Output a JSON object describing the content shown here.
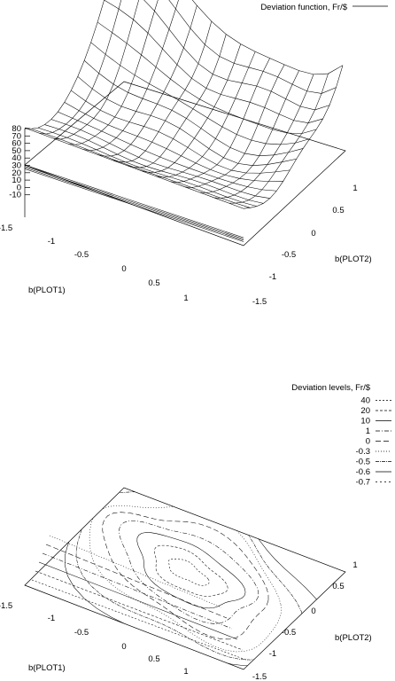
{
  "chart_data": [
    {
      "type": "surface",
      "legend": [
        "Deviation function, Fr/$"
      ],
      "xlabel": "b(PLOT1)",
      "ylabel": "b(PLOT2)",
      "x_ticks": [
        "-1.5",
        "-1",
        "-0.5",
        "0",
        "0.5",
        "1"
      ],
      "y_ticks": [
        "-1.5",
        "-1",
        "-0.5",
        "0",
        "0.5",
        "1"
      ],
      "z_ticks": [
        "80",
        "70",
        "60",
        "50",
        "40",
        "30",
        "20",
        "10",
        "0",
        "-10"
      ],
      "xlim": [
        -1.5,
        1.5
      ],
      "ylim": [
        -1.5,
        1.5
      ],
      "zlim": [
        -10,
        80
      ],
      "grid": "15x15 mesh",
      "legend_position": "top-right",
      "values_estimated": {
        "minimum_region": "centre, about -0.7 Fr/$",
        "high_corner": "b(PLOT1) = -1.5, b(PLOT2) = 1.5, about 80+ Fr/$",
        "low_edge": "b(PLOT2) = -1.5 row, about 30 Fr/$"
      }
    },
    {
      "type": "contour",
      "legend": [
        "Deviation levels, Fr/$",
        "40",
        "20",
        "10",
        "1",
        "0",
        "-0.3",
        "-0.5",
        "-0.6",
        "-0.7"
      ],
      "levels": [
        40,
        20,
        10,
        1,
        0,
        -0.3,
        -0.5,
        -0.6,
        -0.7
      ],
      "xlabel": "b(PLOT1)",
      "ylabel": "b(PLOT2)",
      "x_ticks": [
        "-1.5",
        "-1",
        "-0.5",
        "0",
        "0.5",
        "1"
      ],
      "y_ticks": [
        "-1.5",
        "-1",
        "-0.5",
        "0",
        "0.5",
        "1"
      ],
      "xlim": [
        -1.5,
        1.5
      ],
      "ylim": [
        -1.5,
        1.5
      ],
      "legend_position": "top-right"
    }
  ]
}
